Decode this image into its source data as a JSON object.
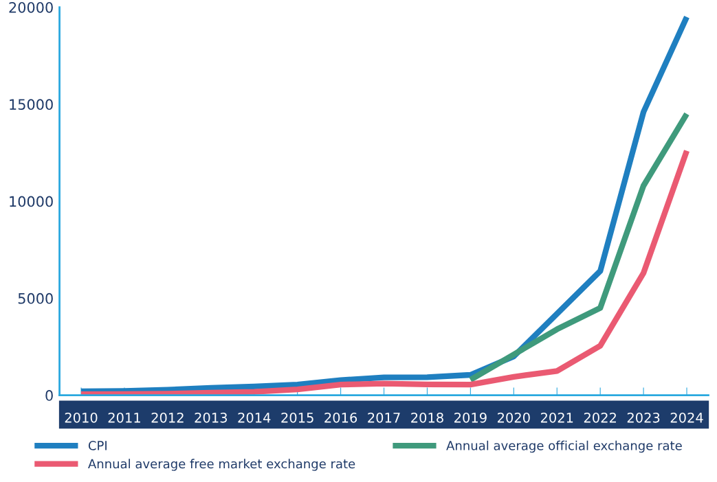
{
  "chart_data": {
    "type": "line",
    "categories": [
      "2010",
      "2011",
      "2012",
      "2013",
      "2014",
      "2015",
      "2016",
      "2017",
      "2018",
      "2019",
      "2020",
      "2021",
      "2022",
      "2023",
      "2024"
    ],
    "series": [
      {
        "name": "CPI",
        "color": "#1f7fc0",
        "values": [
          200,
          220,
          280,
          380,
          450,
          550,
          780,
          920,
          930,
          1050,
          2000,
          4200,
          6400,
          14600,
          19500
        ]
      },
      {
        "name": "Annual average official exchange rate",
        "color": "#3f9a7c",
        "values": [
          null,
          null,
          null,
          null,
          null,
          null,
          null,
          null,
          null,
          800,
          2100,
          3400,
          4500,
          10800,
          14500
        ]
      },
      {
        "name": "Annual average free market exchange rate",
        "color": "#ea5a72",
        "values": [
          50,
          60,
          80,
          130,
          180,
          300,
          550,
          600,
          560,
          550,
          950,
          1250,
          2550,
          6300,
          12600
        ]
      }
    ],
    "ylim": [
      0,
      20000
    ],
    "yticks": [
      0,
      5000,
      10000,
      15000,
      20000
    ],
    "grid": false,
    "legend": "bottom",
    "marker": "none",
    "line_style": "solid"
  }
}
